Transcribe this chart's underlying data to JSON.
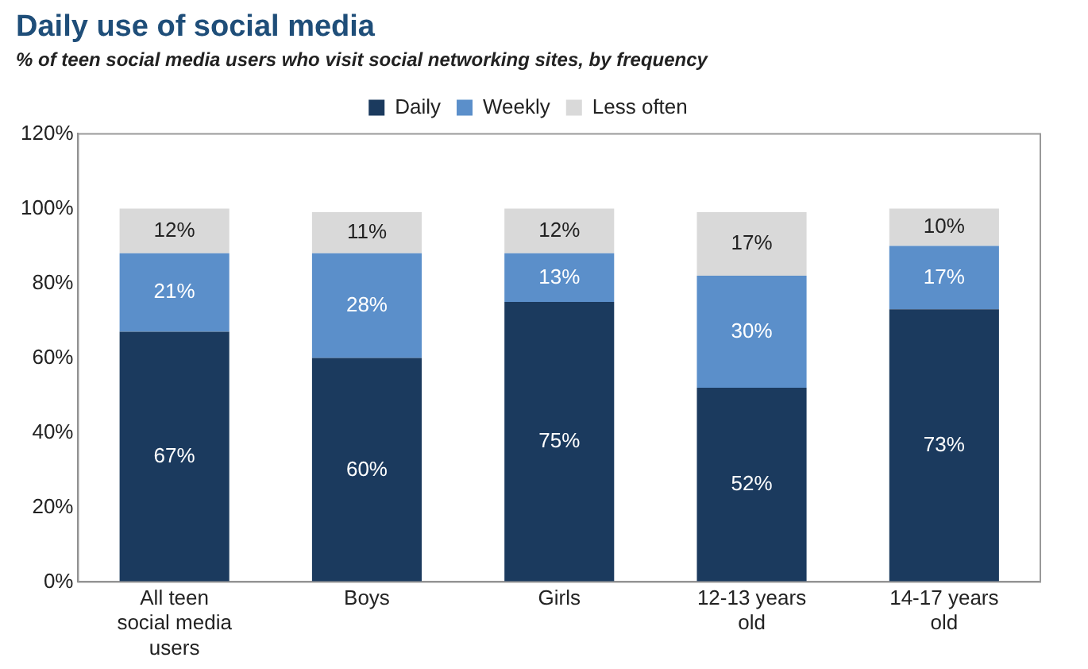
{
  "chart_data": {
    "type": "bar",
    "title": "Daily use of social media",
    "subtitle": "% of teen social media users who visit social networking sites, by frequency",
    "categories": [
      "All teen social media users",
      "Boys",
      "Girls",
      "12-13 years old",
      "14-17 years old"
    ],
    "stacked": true,
    "grid": false,
    "legend": "top",
    "ylim": [
      0,
      120
    ],
    "yticks": [
      {
        "value": 0,
        "label": "0%"
      },
      {
        "value": 20,
        "label": "20%"
      },
      {
        "value": 40,
        "label": "40%"
      },
      {
        "value": 60,
        "label": "60%"
      },
      {
        "value": 80,
        "label": "80%"
      },
      {
        "value": 100,
        "label": "100%"
      },
      {
        "value": 120,
        "label": "120%"
      }
    ],
    "series": [
      {
        "name": "Daily",
        "color": "#1b3a5e",
        "values": [
          67,
          60,
          75,
          52,
          73
        ],
        "value_labels": [
          "67%",
          "60%",
          "75%",
          "52%",
          "73%"
        ]
      },
      {
        "name": "Weekly",
        "color": "#5b8fca",
        "values": [
          21,
          28,
          13,
          30,
          17
        ],
        "value_labels": [
          "21%",
          "28%",
          "13%",
          "30%",
          "17%"
        ]
      },
      {
        "name": "Less often",
        "color": "#d9d9d9",
        "values": [
          12,
          11,
          12,
          17,
          10
        ],
        "value_labels": [
          "12%",
          "11%",
          "12%",
          "17%",
          "10%"
        ]
      }
    ]
  }
}
